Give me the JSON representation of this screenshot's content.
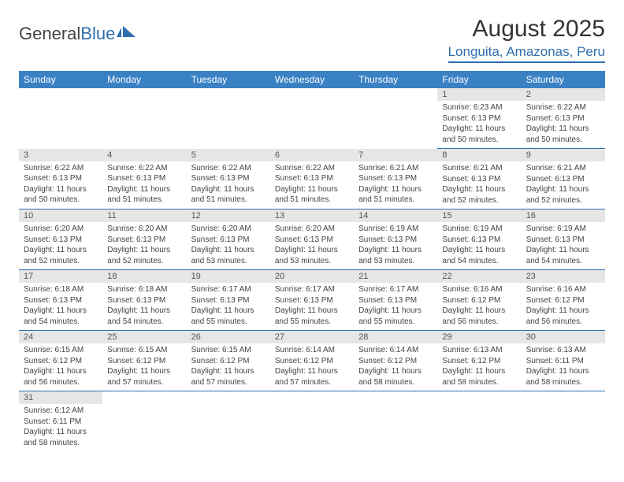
{
  "logo": {
    "text1": "General",
    "text2": "Blue"
  },
  "title": "August 2025",
  "location": "Longuita, Amazonas, Peru",
  "colors": {
    "header_bg": "#3a81c4",
    "accent": "#2f6fae",
    "daynum_bg": "#e6e6e6",
    "text": "#444444"
  },
  "weekdays": [
    "Sunday",
    "Monday",
    "Tuesday",
    "Wednesday",
    "Thursday",
    "Friday",
    "Saturday"
  ],
  "weeks": [
    [
      null,
      null,
      null,
      null,
      null,
      {
        "n": "1",
        "sr": "6:23 AM",
        "ss": "6:13 PM",
        "dl": "11 hours and 50 minutes."
      },
      {
        "n": "2",
        "sr": "6:22 AM",
        "ss": "6:13 PM",
        "dl": "11 hours and 50 minutes."
      }
    ],
    [
      {
        "n": "3",
        "sr": "6:22 AM",
        "ss": "6:13 PM",
        "dl": "11 hours and 50 minutes."
      },
      {
        "n": "4",
        "sr": "6:22 AM",
        "ss": "6:13 PM",
        "dl": "11 hours and 51 minutes."
      },
      {
        "n": "5",
        "sr": "6:22 AM",
        "ss": "6:13 PM",
        "dl": "11 hours and 51 minutes."
      },
      {
        "n": "6",
        "sr": "6:22 AM",
        "ss": "6:13 PM",
        "dl": "11 hours and 51 minutes."
      },
      {
        "n": "7",
        "sr": "6:21 AM",
        "ss": "6:13 PM",
        "dl": "11 hours and 51 minutes."
      },
      {
        "n": "8",
        "sr": "6:21 AM",
        "ss": "6:13 PM",
        "dl": "11 hours and 52 minutes."
      },
      {
        "n": "9",
        "sr": "6:21 AM",
        "ss": "6:13 PM",
        "dl": "11 hours and 52 minutes."
      }
    ],
    [
      {
        "n": "10",
        "sr": "6:20 AM",
        "ss": "6:13 PM",
        "dl": "11 hours and 52 minutes."
      },
      {
        "n": "11",
        "sr": "6:20 AM",
        "ss": "6:13 PM",
        "dl": "11 hours and 52 minutes."
      },
      {
        "n": "12",
        "sr": "6:20 AM",
        "ss": "6:13 PM",
        "dl": "11 hours and 53 minutes."
      },
      {
        "n": "13",
        "sr": "6:20 AM",
        "ss": "6:13 PM",
        "dl": "11 hours and 53 minutes."
      },
      {
        "n": "14",
        "sr": "6:19 AM",
        "ss": "6:13 PM",
        "dl": "11 hours and 53 minutes."
      },
      {
        "n": "15",
        "sr": "6:19 AM",
        "ss": "6:13 PM",
        "dl": "11 hours and 54 minutes."
      },
      {
        "n": "16",
        "sr": "6:19 AM",
        "ss": "6:13 PM",
        "dl": "11 hours and 54 minutes."
      }
    ],
    [
      {
        "n": "17",
        "sr": "6:18 AM",
        "ss": "6:13 PM",
        "dl": "11 hours and 54 minutes."
      },
      {
        "n": "18",
        "sr": "6:18 AM",
        "ss": "6:13 PM",
        "dl": "11 hours and 54 minutes."
      },
      {
        "n": "19",
        "sr": "6:17 AM",
        "ss": "6:13 PM",
        "dl": "11 hours and 55 minutes."
      },
      {
        "n": "20",
        "sr": "6:17 AM",
        "ss": "6:13 PM",
        "dl": "11 hours and 55 minutes."
      },
      {
        "n": "21",
        "sr": "6:17 AM",
        "ss": "6:13 PM",
        "dl": "11 hours and 55 minutes."
      },
      {
        "n": "22",
        "sr": "6:16 AM",
        "ss": "6:12 PM",
        "dl": "11 hours and 56 minutes."
      },
      {
        "n": "23",
        "sr": "6:16 AM",
        "ss": "6:12 PM",
        "dl": "11 hours and 56 minutes."
      }
    ],
    [
      {
        "n": "24",
        "sr": "6:15 AM",
        "ss": "6:12 PM",
        "dl": "11 hours and 56 minutes."
      },
      {
        "n": "25",
        "sr": "6:15 AM",
        "ss": "6:12 PM",
        "dl": "11 hours and 57 minutes."
      },
      {
        "n": "26",
        "sr": "6:15 AM",
        "ss": "6:12 PM",
        "dl": "11 hours and 57 minutes."
      },
      {
        "n": "27",
        "sr": "6:14 AM",
        "ss": "6:12 PM",
        "dl": "11 hours and 57 minutes."
      },
      {
        "n": "28",
        "sr": "6:14 AM",
        "ss": "6:12 PM",
        "dl": "11 hours and 58 minutes."
      },
      {
        "n": "29",
        "sr": "6:13 AM",
        "ss": "6:12 PM",
        "dl": "11 hours and 58 minutes."
      },
      {
        "n": "30",
        "sr": "6:13 AM",
        "ss": "6:11 PM",
        "dl": "11 hours and 58 minutes."
      }
    ],
    [
      {
        "n": "31",
        "sr": "6:12 AM",
        "ss": "6:11 PM",
        "dl": "11 hours and 58 minutes."
      },
      null,
      null,
      null,
      null,
      null,
      null
    ]
  ],
  "labels": {
    "sunrise": "Sunrise: ",
    "sunset": "Sunset: ",
    "daylight": "Daylight: "
  }
}
